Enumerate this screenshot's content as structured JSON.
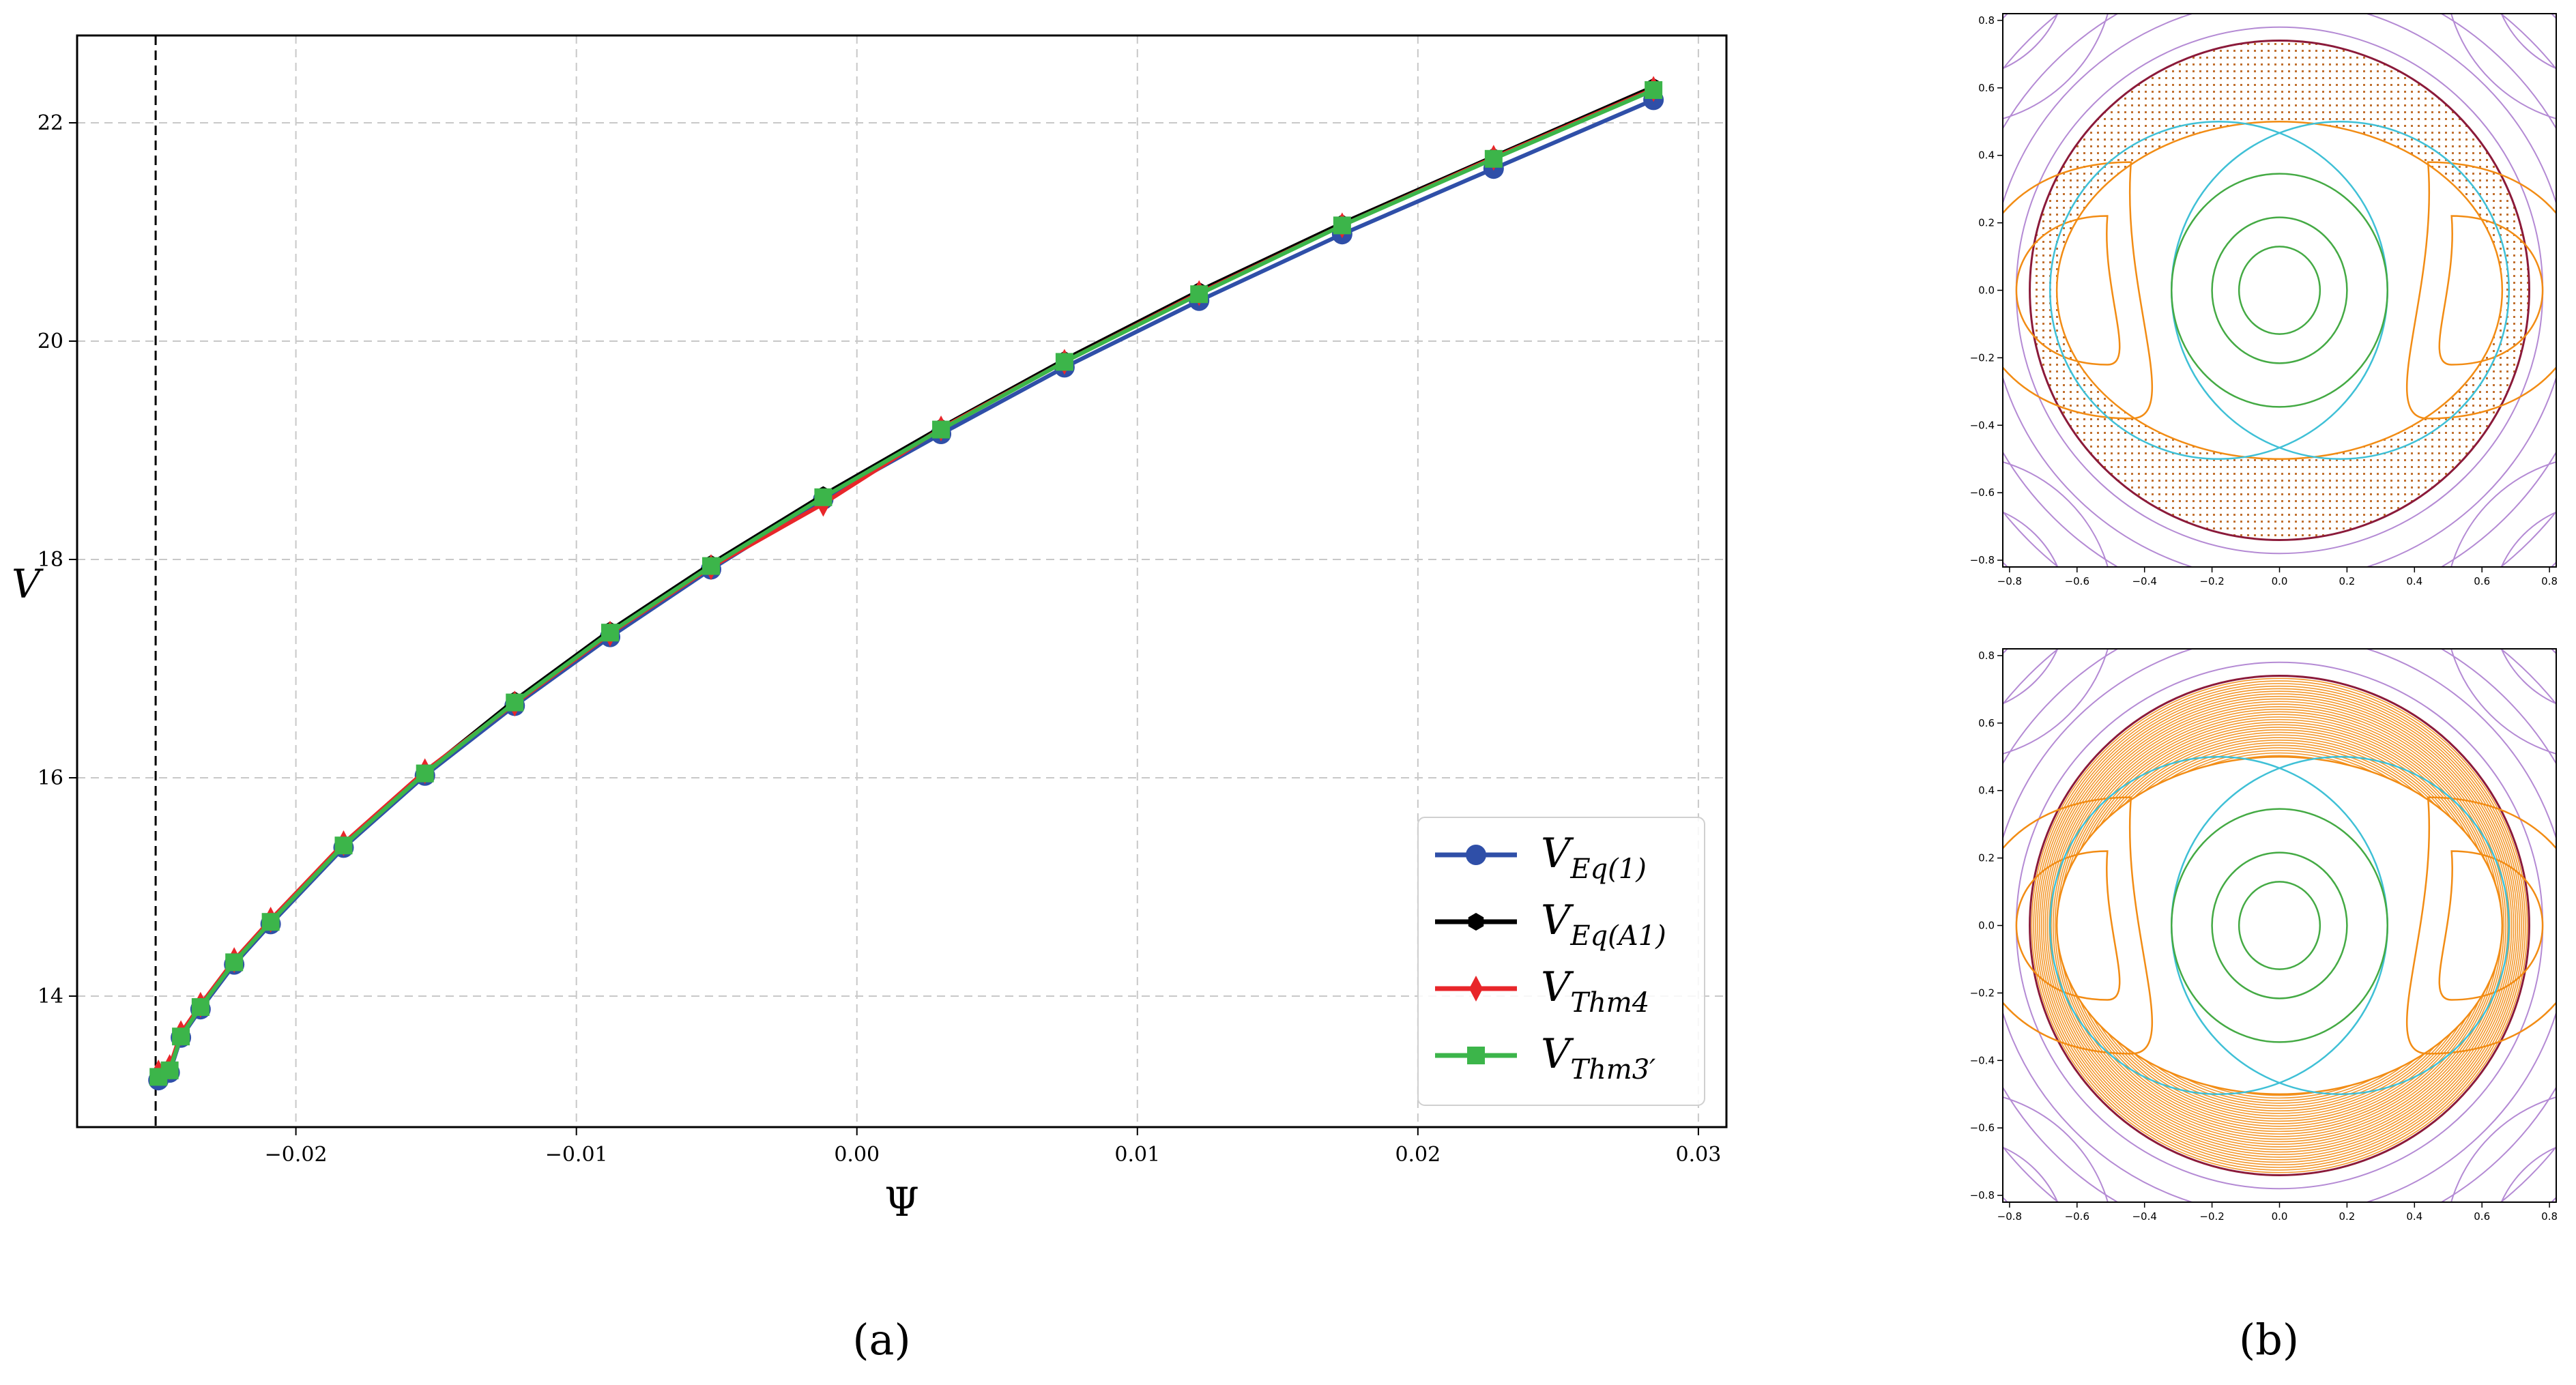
{
  "chart_data": [
    {
      "type": "line",
      "xlabel": "Ψ",
      "ylabel": "V",
      "xlim": [
        -0.0278,
        0.031
      ],
      "ylim": [
        12.8,
        22.8
      ],
      "xticks": [
        "−0.02",
        "−0.01",
        "0.00",
        "0.01",
        "0.02",
        "0.03"
      ],
      "xtick_values": [
        -0.02,
        -0.01,
        0.0,
        0.01,
        0.02,
        0.03
      ],
      "yticks": [
        "14",
        "16",
        "18",
        "20",
        "22"
      ],
      "ytick_values": [
        14,
        16,
        18,
        20,
        22
      ],
      "grid": true,
      "vline": -0.025,
      "legend_position": "lower right",
      "caption": "(a)",
      "series": [
        {
          "name": "V",
          "name_sub": "Eq(1)",
          "color": "#2f4fa8",
          "marker": "circle",
          "x": [
            -0.0249,
            -0.0245,
            -0.0241,
            -0.0234,
            -0.0222,
            -0.0209,
            -0.0183,
            -0.0154,
            -0.0122,
            -0.0088,
            -0.0052,
            -0.0012,
            0.003,
            0.0074,
            0.0122,
            0.0173,
            0.0227,
            0.0284
          ],
          "y": [
            13.23,
            13.3,
            13.62,
            13.88,
            14.29,
            14.66,
            15.36,
            16.02,
            16.66,
            17.29,
            17.91,
            18.55,
            19.15,
            19.76,
            20.37,
            20.98,
            21.58,
            22.21
          ]
        },
        {
          "name": "V",
          "name_sub": "Eq(A1)",
          "color": "#000000",
          "marker": "hexagon",
          "x": [
            -0.0249,
            -0.0245,
            -0.0241,
            -0.0234,
            -0.0222,
            -0.0209,
            -0.0183,
            -0.0154,
            -0.0122,
            -0.0088,
            -0.0052,
            -0.0012,
            0.003,
            0.0074,
            0.0122,
            0.0173,
            0.0227,
            0.0284
          ],
          "y": [
            13.27,
            13.33,
            13.64,
            13.91,
            14.32,
            14.69,
            15.39,
            16.05,
            16.71,
            17.35,
            17.96,
            18.59,
            19.21,
            19.83,
            20.46,
            21.08,
            21.69,
            22.33
          ]
        },
        {
          "name": "V",
          "name_sub": "Thm4",
          "color": "#e8262a",
          "marker": "diamond",
          "x": [
            -0.0249,
            -0.0245,
            -0.0241,
            -0.0234,
            -0.0222,
            -0.0209,
            -0.0183,
            -0.0154,
            -0.0122,
            -0.0088,
            -0.0052,
            -0.0012,
            0.003,
            0.0074,
            0.0122,
            0.0173,
            0.0227,
            0.0284
          ],
          "y": [
            13.3,
            13.35,
            13.66,
            13.92,
            14.33,
            14.7,
            15.4,
            16.06,
            16.68,
            17.32,
            17.93,
            18.51,
            19.2,
            19.81,
            20.44,
            21.06,
            21.68,
            22.31
          ]
        },
        {
          "name": "V",
          "name_sub": "Thm3′",
          "color": "#3cb54a",
          "marker": "square",
          "x": [
            -0.0249,
            -0.0245,
            -0.0241,
            -0.0234,
            -0.0222,
            -0.0209,
            -0.0183,
            -0.0154,
            -0.0122,
            -0.0088,
            -0.0052,
            -0.0012,
            0.003,
            0.0074,
            0.0122,
            0.0173,
            0.0227,
            0.0284
          ],
          "y": [
            13.26,
            13.32,
            13.63,
            13.9,
            14.31,
            14.68,
            15.38,
            16.04,
            16.69,
            17.33,
            17.94,
            18.57,
            19.19,
            19.81,
            20.43,
            21.06,
            21.67,
            22.3
          ]
        }
      ]
    },
    {
      "type": "contour",
      "caption": "(b)",
      "xlim": [
        -0.82,
        0.82
      ],
      "ylim": [
        -0.82,
        0.82
      ],
      "xticks": [
        "−0.8",
        "−0.6",
        "−0.4",
        "−0.2",
        "0.0",
        "0.2",
        "0.4",
        "0.6",
        "0.8"
      ],
      "yticks": [
        "0.8",
        "0.6",
        "0.4",
        "0.2",
        "0.0",
        "−0.2",
        "−0.4",
        "−0.6",
        "−0.8"
      ],
      "tick_values": [
        -0.8,
        -0.6,
        -0.4,
        -0.2,
        0.0,
        0.2,
        0.4,
        0.6,
        0.8
      ],
      "panels": [
        {
          "fill": "dotted"
        },
        {
          "fill": "dense-rings"
        }
      ],
      "colors": {
        "outer": "#b48ad4",
        "boundary": "#8b1a3a",
        "orange": "#f28c14",
        "cyan": "#3fc0d6",
        "green": "#44aa44",
        "dots": "#c07030"
      }
    }
  ]
}
